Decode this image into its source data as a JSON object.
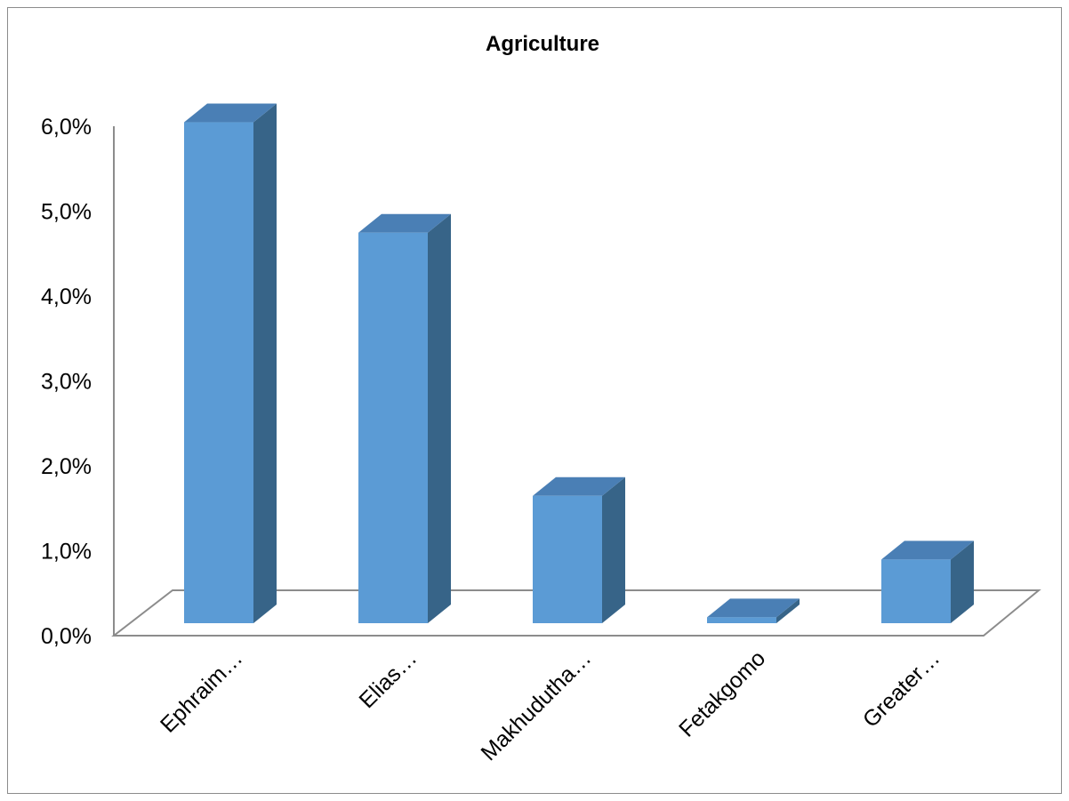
{
  "chart_data": {
    "type": "bar",
    "title": "Agriculture",
    "categories": [
      "Ephraim…",
      "Elias…",
      "Makhudutha…",
      "Fetakgomo",
      "Greater…"
    ],
    "values": [
      5.9,
      4.6,
      1.5,
      0.07,
      0.75
    ],
    "ylim": [
      0,
      6
    ],
    "yticks": [
      "0,0%",
      "1,0%",
      "2,0%",
      "3,0%",
      "4,0%",
      "5,0%",
      "6,0%"
    ],
    "grid": false,
    "legend": "none",
    "style": "3d-column"
  },
  "colors": {
    "bar_front": "#5b9bd5",
    "bar_side": "#376488",
    "bar_top": "#4a7fb5",
    "axis": "#8c8c8c"
  }
}
